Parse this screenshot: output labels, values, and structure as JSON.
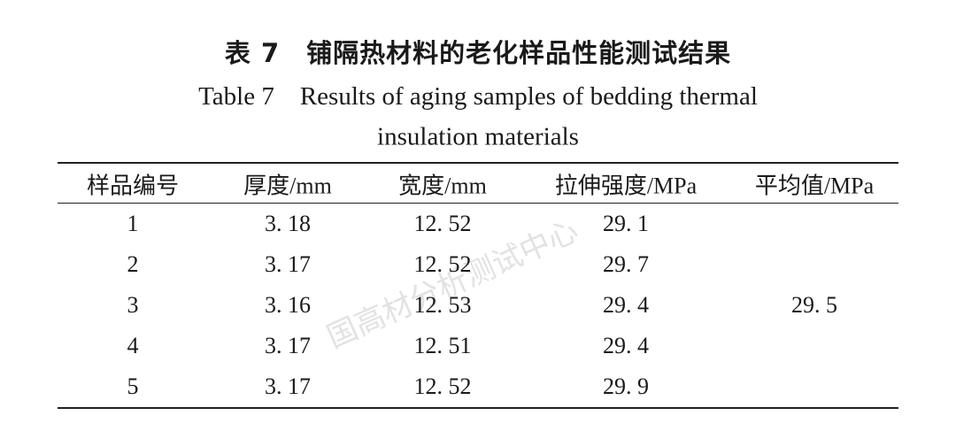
{
  "header": {
    "title_cn": "表 7　铺隔热材料的老化样品性能测试结果",
    "title_en_1": "Table 7　Results of aging samples of bedding thermal",
    "title_en_2": "insulation materials"
  },
  "table": {
    "columns": [
      "样品编号",
      "厚度/mm",
      "宽度/mm",
      "拉伸强度/MPa",
      "平均值/MPa"
    ],
    "rows": [
      [
        "1",
        "3. 18",
        "12. 52",
        "29. 1"
      ],
      [
        "2",
        "3. 17",
        "12. 52",
        "29. 7"
      ],
      [
        "3",
        "3. 16",
        "12. 53",
        "29. 4"
      ],
      [
        "4",
        "3. 17",
        "12. 51",
        "29. 4"
      ],
      [
        "5",
        "3. 17",
        "12. 52",
        "29. 9"
      ]
    ],
    "average": "29. 5"
  },
  "watermark": "国高材分析测试中心"
}
